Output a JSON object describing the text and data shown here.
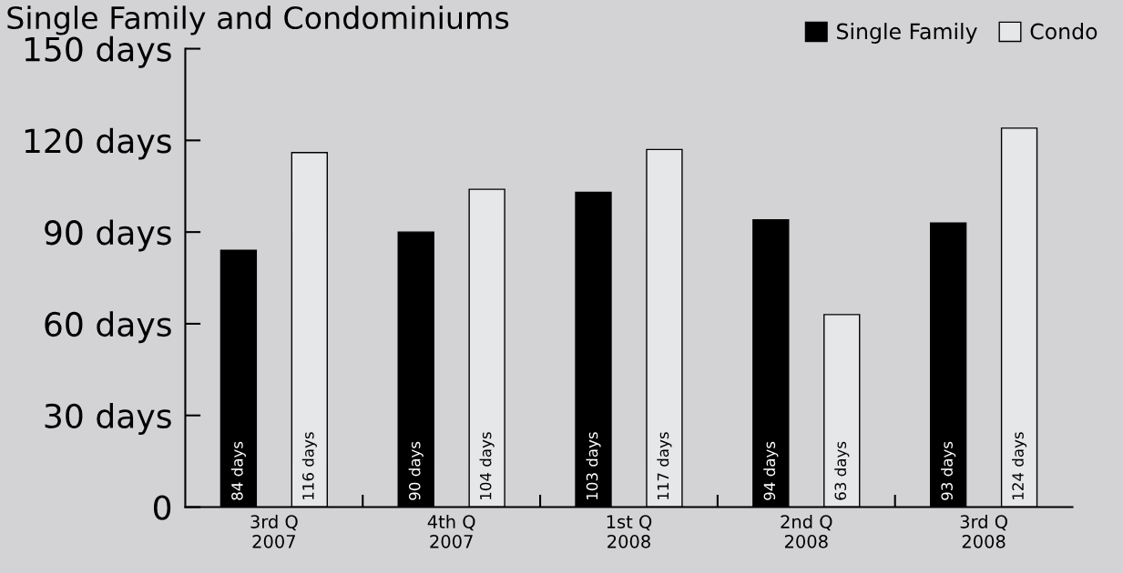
{
  "chart_data": {
    "type": "bar",
    "title": "Single Family and Condominiums",
    "categories": [
      "3rd Q\n2007",
      "4th Q\n2007",
      "1st Q\n2008",
      "2nd Q\n2008",
      "3rd Q\n2008"
    ],
    "series": [
      {
        "name": "Single Family",
        "color": "#000000",
        "values": [
          84,
          90,
          103,
          94,
          93
        ],
        "value_labels": [
          "84 days",
          "90 days",
          "103 days",
          "94 days",
          "93 days"
        ]
      },
      {
        "name": "Condo",
        "color": "#e6e7e8",
        "values": [
          116,
          104,
          117,
          63,
          124
        ],
        "value_labels": [
          "116 days",
          "104 days",
          "117 days",
          "63 days",
          "124 days"
        ]
      }
    ],
    "ylim": [
      0,
      150
    ],
    "yticks": [
      0,
      {
        "value": 30,
        "label": "30 days"
      },
      {
        "value": 60,
        "label": "60 days"
      },
      {
        "value": 90,
        "label": "90 days"
      },
      {
        "value": 120,
        "label": "120 days"
      },
      {
        "value": 150,
        "label": "150 days"
      }
    ],
    "grid": false,
    "legend": "top right"
  }
}
